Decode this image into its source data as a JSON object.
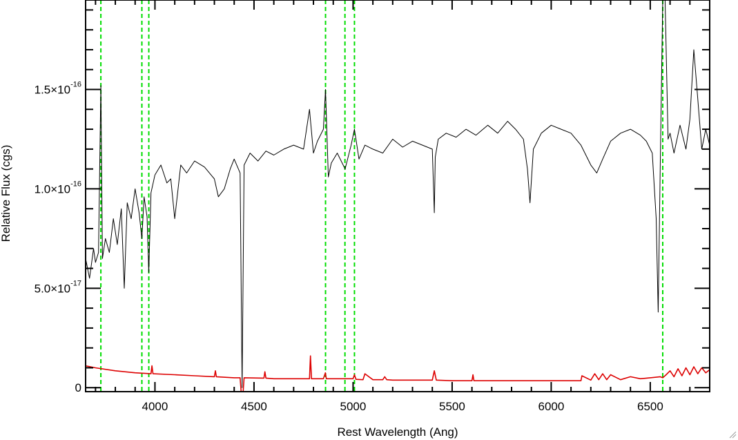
{
  "chart_data": {
    "type": "line",
    "xlabel": "Rest Wavelength (Ang)",
    "ylabel": "Relative Flux (cgs)",
    "xlim": [
      3650,
      6800
    ],
    "ylim": [
      -2e-18,
      1.95e-16
    ],
    "x_ticks": [
      {
        "value": 4000,
        "label": "4000"
      },
      {
        "value": 4500,
        "label": "4500"
      },
      {
        "value": 5000,
        "label": "5000"
      },
      {
        "value": 5500,
        "label": "5500"
      },
      {
        "value": 6000,
        "label": "6000"
      },
      {
        "value": 6500,
        "label": "6500"
      }
    ],
    "y_ticks": [
      {
        "value": 0,
        "mantissa": "0",
        "exponent": ""
      },
      {
        "value": 5e-17,
        "mantissa": "5.0×10",
        "exponent": "-17"
      },
      {
        "value": 1e-16,
        "mantissa": "1.0×10",
        "exponent": "-16"
      },
      {
        "value": 1.5e-16,
        "mantissa": "1.5×10",
        "exponent": "-16"
      }
    ],
    "reference_lines": {
      "color": "#00dd00",
      "style": "dashed",
      "x": [
        3727,
        3934,
        3969,
        4861,
        4959,
        5007,
        6563
      ]
    },
    "series": [
      {
        "color": "#000000",
        "x": [
          3650,
          3670,
          3690,
          3700,
          3715,
          3727,
          3735,
          3750,
          3770,
          3790,
          3810,
          3830,
          3845,
          3860,
          3880,
          3900,
          3920,
          3934,
          3945,
          3960,
          3969,
          3980,
          4000,
          4030,
          4060,
          4080,
          4100,
          4130,
          4160,
          4200,
          4250,
          4300,
          4320,
          4350,
          4380,
          4400,
          4430,
          4440,
          4450,
          4480,
          4520,
          4560,
          4600,
          4650,
          4700,
          4750,
          4780,
          4800,
          4820,
          4850,
          4861,
          4875,
          4890,
          4920,
          4960,
          4990,
          5007,
          5030,
          5060,
          5100,
          5150,
          5200,
          5250,
          5300,
          5350,
          5400,
          5410,
          5415,
          5430,
          5470,
          5520,
          5570,
          5620,
          5680,
          5730,
          5780,
          5820,
          5860,
          5880,
          5893,
          5910,
          5950,
          6000,
          6050,
          6100,
          6150,
          6200,
          6230,
          6260,
          6300,
          6350,
          6400,
          6450,
          6480,
          6510,
          6530,
          6540,
          6550,
          6563,
          6575,
          6590,
          6600,
          6620,
          6650,
          6680,
          6700,
          6720,
          6740,
          6760,
          6780,
          6800
        ],
        "y": [
          6.5e-17,
          5.5e-17,
          7e-17,
          6.3e-17,
          6.8e-17,
          1.52e-16,
          6.5e-17,
          7.5e-17,
          6.8e-17,
          8.5e-17,
          7.2e-17,
          9e-17,
          5e-17,
          9.3e-17,
          8.5e-17,
          1e-16,
          8.8e-17,
          7.5e-17,
          9.6e-17,
          8.6e-17,
          5.8e-17,
          9.8e-17,
          1.07e-16,
          1.12e-16,
          1.03e-16,
          1.05e-16,
          8.5e-17,
          1.12e-16,
          1.08e-16,
          1.14e-16,
          1.11e-16,
          1.05e-16,
          9.6e-17,
          1e-16,
          1.1e-16,
          1.15e-16,
          1.08e-16,
          0,
          1.12e-16,
          1.18e-16,
          1.14e-16,
          1.19e-16,
          1.17e-16,
          1.2e-16,
          1.22e-16,
          1.2e-16,
          1.4e-16,
          1.18e-16,
          1.24e-16,
          1.3e-16,
          1.5e-16,
          1.06e-16,
          1.13e-16,
          1.18e-16,
          1.1e-16,
          1.22e-16,
          1.3e-16,
          1.15e-16,
          1.22e-16,
          1.2e-16,
          1.18e-16,
          1.25e-16,
          1.21e-16,
          1.24e-16,
          1.22e-16,
          1.2e-16,
          8.8e-17,
          1.16e-16,
          1.25e-16,
          1.28e-16,
          1.26e-16,
          1.3e-16,
          1.27e-16,
          1.32e-16,
          1.28e-16,
          1.34e-16,
          1.3e-16,
          1.25e-16,
          1.1e-16,
          9.3e-17,
          1.2e-16,
          1.28e-16,
          1.32e-16,
          1.3e-16,
          1.28e-16,
          1.22e-16,
          1.12e-16,
          1.08e-16,
          1.15e-16,
          1.24e-16,
          1.28e-16,
          1.3e-16,
          1.27e-16,
          1.24e-16,
          1.18e-16,
          8.5e-17,
          3.8e-17,
          1.1e-16,
          1.95e-16,
          1.95e-16,
          1.25e-16,
          1.28e-16,
          1.18e-16,
          1.32e-16,
          1.2e-16,
          1.35e-16,
          1.7e-16,
          1.45e-16,
          1.2e-16,
          1.3e-16,
          1.22e-16
        ]
      },
      {
        "color": "#dd0000",
        "x": [
          3650,
          3700,
          3800,
          3900,
          3980,
          3985,
          3990,
          4100,
          4200,
          4300,
          4305,
          4310,
          4400,
          4430,
          4435,
          4445,
          4450,
          4550,
          4555,
          4560,
          4600,
          4700,
          4780,
          4785,
          4790,
          4800,
          4850,
          4860,
          4865,
          4870,
          4950,
          5000,
          5007,
          5015,
          5050,
          5060,
          5100,
          5150,
          5160,
          5170,
          5200,
          5300,
          5400,
          5410,
          5420,
          5500,
          5600,
          5605,
          5610,
          5700,
          5800,
          5900,
          6000,
          6100,
          6150,
          6155,
          6200,
          6220,
          6240,
          6260,
          6280,
          6300,
          6350,
          6400,
          6450,
          6500,
          6550,
          6563,
          6580,
          6600,
          6620,
          6640,
          6660,
          6680,
          6700,
          6720,
          6740,
          6760,
          6780,
          6800
        ],
        "y": [
          1.1e-17,
          1e-17,
          8.5e-18,
          7.5e-18,
          7e-18,
          1.1e-17,
          7e-18,
          6.5e-18,
          6e-18,
          5.5e-18,
          8.5e-18,
          5.5e-18,
          5e-18,
          5e-18,
          -2e-18,
          -2e-18,
          5e-18,
          4.8e-18,
          8e-18,
          4.8e-18,
          4.5e-18,
          4.5e-18,
          4.5e-18,
          1.6e-17,
          4.5e-18,
          4.5e-18,
          4.5e-18,
          7.5e-18,
          4.5e-18,
          4.5e-18,
          4.5e-18,
          4.5e-18,
          6.5e-18,
          4.2e-18,
          4e-18,
          7e-18,
          4e-18,
          4e-18,
          5.5e-18,
          4e-18,
          3.8e-18,
          3.8e-18,
          3.8e-18,
          8.5e-18,
          3.8e-18,
          3.5e-18,
          3.5e-18,
          6.5e-18,
          3.5e-18,
          3.5e-18,
          3.5e-18,
          3.5e-18,
          3.5e-18,
          3.5e-18,
          3.5e-18,
          6e-18,
          3.8e-18,
          7e-18,
          4e-18,
          7e-18,
          4e-18,
          6.5e-18,
          4e-18,
          5.5e-18,
          4.5e-18,
          5e-18,
          5.5e-18,
          5e-18,
          6.5e-18,
          8.5e-18,
          5.5e-18,
          9.5e-18,
          6e-18,
          1e-17,
          6.5e-18,
          1.05e-17,
          7e-18,
          1e-17,
          7.5e-18,
          9e-18
        ]
      }
    ]
  }
}
